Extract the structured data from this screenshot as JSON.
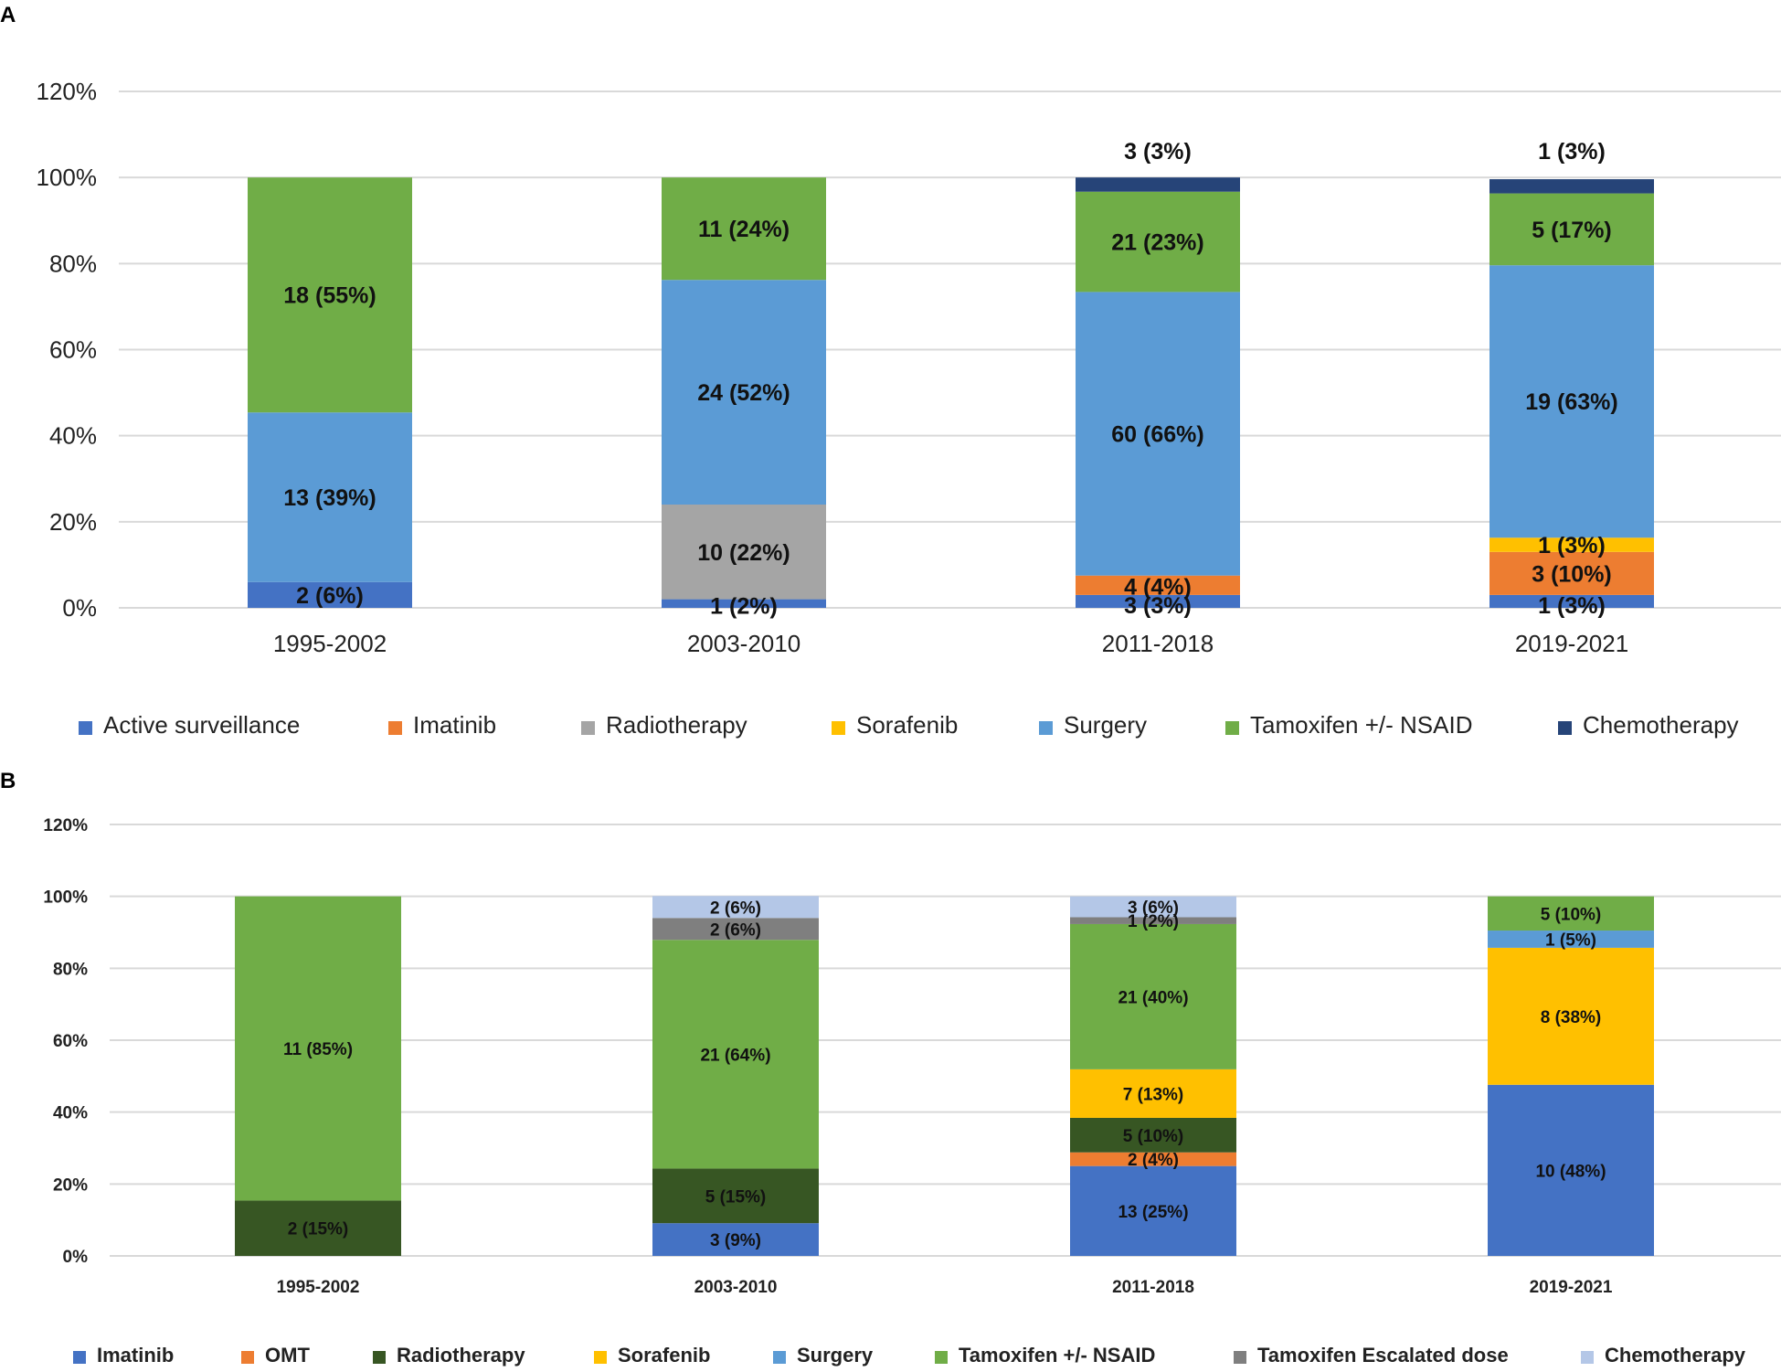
{
  "chart_data": [
    {
      "panel": "A",
      "type": "bar",
      "stacked": true,
      "categories": [
        "1995-2002",
        "2003-2010",
        "2011-2018",
        "2019-2021"
      ],
      "ylim": [
        0,
        120
      ],
      "yticks": [
        "0%",
        "20%",
        "40%",
        "60%",
        "80%",
        "100%",
        "120%"
      ],
      "grid": true,
      "legend_position": "bottom",
      "series": [
        {
          "name": "Active surveillance",
          "color": "#4472c4",
          "values": [
            6,
            2,
            3,
            3
          ],
          "labels": [
            "2 (6%)",
            "1 (2%)",
            "3 (3%)",
            "1 (3%)"
          ]
        },
        {
          "name": "Imatinib",
          "color": "#ed7d31",
          "values": [
            0,
            0,
            4.5,
            10
          ],
          "labels": [
            "",
            "",
            "4 (4%)",
            "3 (10%)"
          ]
        },
        {
          "name": "Radiotherapy",
          "color": "#a5a5a5",
          "values": [
            0,
            22,
            0,
            0
          ],
          "labels": [
            "",
            "10 (22%)",
            "",
            ""
          ]
        },
        {
          "name": "Sorafenib",
          "color": "#ffc000",
          "values": [
            0,
            0,
            0,
            3.3
          ],
          "labels": [
            "",
            "",
            "",
            "1 (3%)"
          ]
        },
        {
          "name": "Surgery",
          "color": "#5b9bd5",
          "values": [
            39.4,
            52.2,
            65.9,
            63.3
          ],
          "labels": [
            "13 (39%)",
            "24 (52%)",
            "60 (66%)",
            "19 (63%)"
          ]
        },
        {
          "name": "Tamoxifen +/- NSAID",
          "color": "#70ad47",
          "values": [
            54.6,
            23.8,
            23.3,
            16.7
          ],
          "labels": [
            "18 (55%)",
            "11 (24%)",
            "21 (23%)",
            "5 (17%)"
          ]
        },
        {
          "name": "Chemotherapy",
          "color": "#264478",
          "values": [
            0,
            0,
            3.3,
            3.3
          ],
          "labels": [
            "",
            "",
            "3 (3%)",
            "1 (3%)"
          ]
        }
      ]
    },
    {
      "panel": "B",
      "type": "bar",
      "stacked": true,
      "categories": [
        "1995-2002",
        "2003-2010",
        "2011-2018",
        "2019-2021"
      ],
      "ylim": [
        0,
        120
      ],
      "yticks": [
        "0%",
        "20%",
        "40%",
        "60%",
        "80%",
        "100%",
        "120%"
      ],
      "grid": true,
      "legend_position": "bottom",
      "series": [
        {
          "name": "Imatinib",
          "color": "#4472c4",
          "values": [
            0,
            9.1,
            25,
            47.6
          ],
          "labels": [
            "",
            "3 (9%)",
            "13 (25%)",
            "10 (48%)"
          ]
        },
        {
          "name": "OMT",
          "color": "#ed7d31",
          "values": [
            0,
            0,
            3.8,
            0
          ],
          "labels": [
            "",
            "",
            "2 (4%)",
            ""
          ]
        },
        {
          "name": "Radiotherapy",
          "color": "#375623",
          "values": [
            15.4,
            15.2,
            9.6,
            0
          ],
          "labels": [
            "2 (15%)",
            "5 (15%)",
            "5 (10%)",
            ""
          ]
        },
        {
          "name": "Sorafenib",
          "color": "#ffc000",
          "values": [
            0,
            0,
            13.5,
            38.1
          ],
          "labels": [
            "",
            "",
            "7 (13%)",
            "8 (38%)"
          ]
        },
        {
          "name": "Surgery",
          "color": "#5b9bd5",
          "values": [
            0,
            0,
            0,
            4.8
          ],
          "labels": [
            "",
            "",
            "",
            "1 (5%)"
          ]
        },
        {
          "name": "Tamoxifen +/- NSAID",
          "color": "#70ad47",
          "values": [
            84.6,
            63.6,
            40.4,
            9.5
          ],
          "labels": [
            "11 (85%)",
            "21 (64%)",
            "21 (40%)",
            "5 (10%)"
          ]
        },
        {
          "name": "Tamoxifen Escalated dose",
          "color": "#7f7f7f",
          "values": [
            0,
            6.1,
            1.9,
            0
          ],
          "labels": [
            "",
            "2 (6%)",
            "1 (2%)",
            ""
          ]
        },
        {
          "name": "Chemotherapy",
          "color": "#b4c7e7",
          "values": [
            0,
            6.1,
            5.8,
            0
          ],
          "labels": [
            "",
            "2 (6%)",
            "3 (6%)",
            ""
          ]
        }
      ]
    }
  ]
}
